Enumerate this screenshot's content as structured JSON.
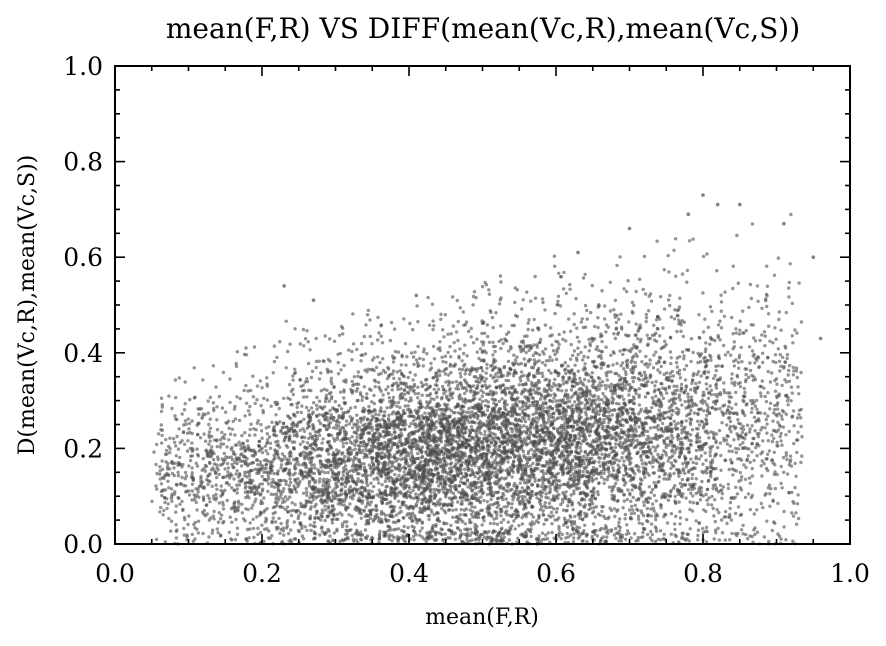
{
  "chart_data": {
    "type": "scatter",
    "title": "mean(F,R) VS DIFF(mean(Vc,R),mean(Vc,S))",
    "xlabel": "mean(F,R)",
    "ylabel": "D(mean(Vc,R),mean(Vc,S))",
    "xlim": [
      0.0,
      1.0
    ],
    "ylim": [
      0.0,
      1.0
    ],
    "xticks": [
      "0.0",
      "0.2",
      "0.4",
      "0.6",
      "0.8",
      "1.0"
    ],
    "yticks": [
      "0.0",
      "0.2",
      "0.4",
      "0.6",
      "0.8",
      "1.0"
    ],
    "grid": false,
    "legend": "none",
    "point_color": "#4d4d4d",
    "series": [
      {
        "x_range": [
          0.05,
          0.96
        ],
        "y_range": [
          0.0,
          0.73
        ],
        "approx_points": 9000,
        "outliers": [
          {
            "x": 0.8,
            "y": 0.73
          },
          {
            "x": 0.82,
            "y": 0.71
          },
          {
            "x": 0.85,
            "y": 0.71
          },
          {
            "x": 0.78,
            "y": 0.69
          },
          {
            "x": 0.91,
            "y": 0.67
          },
          {
            "x": 0.7,
            "y": 0.66
          },
          {
            "x": 0.63,
            "y": 0.61
          },
          {
            "x": 0.95,
            "y": 0.6
          },
          {
            "x": 0.23,
            "y": 0.54
          },
          {
            "x": 0.41,
            "y": 0.52
          },
          {
            "x": 0.27,
            "y": 0.51
          },
          {
            "x": 0.96,
            "y": 0.43
          }
        ]
      }
    ]
  }
}
